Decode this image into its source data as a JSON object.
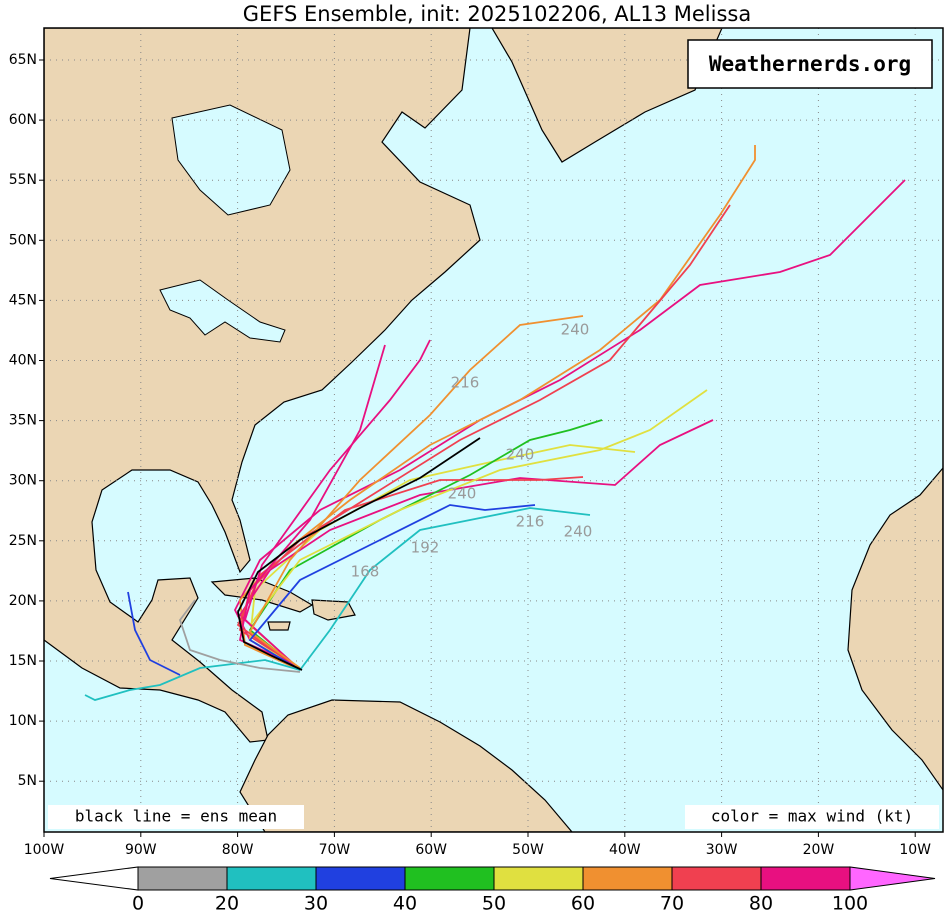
{
  "title": "GEFS Ensemble, init: 2025102206, AL13 Melissa",
  "watermark": "Weathernerds.org",
  "note_left": "black line = ens mean",
  "note_right": "color = max wind (kt)",
  "lat_labels": [
    "65N",
    "60N",
    "55N",
    "50N",
    "45N",
    "40N",
    "35N",
    "30N",
    "25N",
    "20N",
    "15N",
    "10N",
    "5N"
  ],
  "lon_labels": [
    "100W",
    "90W",
    "80W",
    "70W",
    "60W",
    "50W",
    "40W",
    "30W",
    "20W",
    "10W"
  ],
  "track_labels": [
    "240",
    "216",
    "240",
    "240",
    "216",
    "240",
    "192",
    "168"
  ],
  "colorbar": {
    "labels": [
      "0",
      "20",
      "30",
      "40",
      "50",
      "60",
      "70",
      "80",
      "100"
    ],
    "colors": [
      "#a0a0a0",
      "#20c0c0",
      "#2040e0",
      "#20c020",
      "#e0e040",
      "#f09030",
      "#f04050",
      "#e81080"
    ],
    "under_color": "#ffffff",
    "over_color": "#ff66ff"
  }
}
